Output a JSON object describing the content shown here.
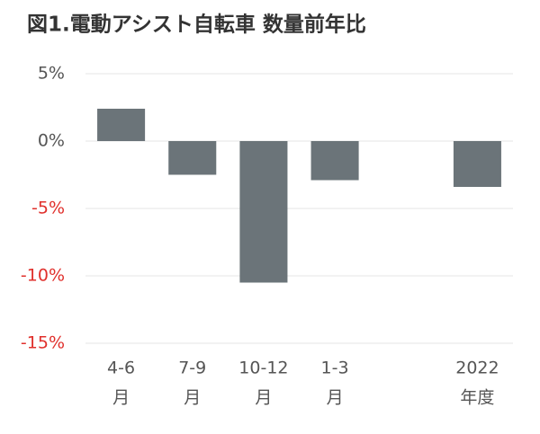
{
  "chart_data": {
    "type": "bar",
    "title": "図1.電動アシスト自転車 数量前年比",
    "categories": [
      [
        "4-6",
        "月"
      ],
      [
        "7-9",
        "月"
      ],
      [
        "10-12",
        "月"
      ],
      [
        "1-3",
        "月"
      ],
      null,
      [
        "2022",
        "年度"
      ]
    ],
    "values": [
      2.4,
      -2.5,
      -10.5,
      -2.9,
      null,
      -3.4
    ],
    "color": "#6b7479",
    "ylim": [
      -15,
      5
    ],
    "yticks": [
      {
        "value": 5,
        "label": "5%"
      },
      {
        "value": 0,
        "label": "0%"
      },
      {
        "value": -5,
        "label": "-5%"
      },
      {
        "value": -10,
        "label": "-10%"
      },
      {
        "value": -15,
        "label": "-15%"
      }
    ],
    "negative_tick_color": "#e0302c",
    "grid": true
  }
}
